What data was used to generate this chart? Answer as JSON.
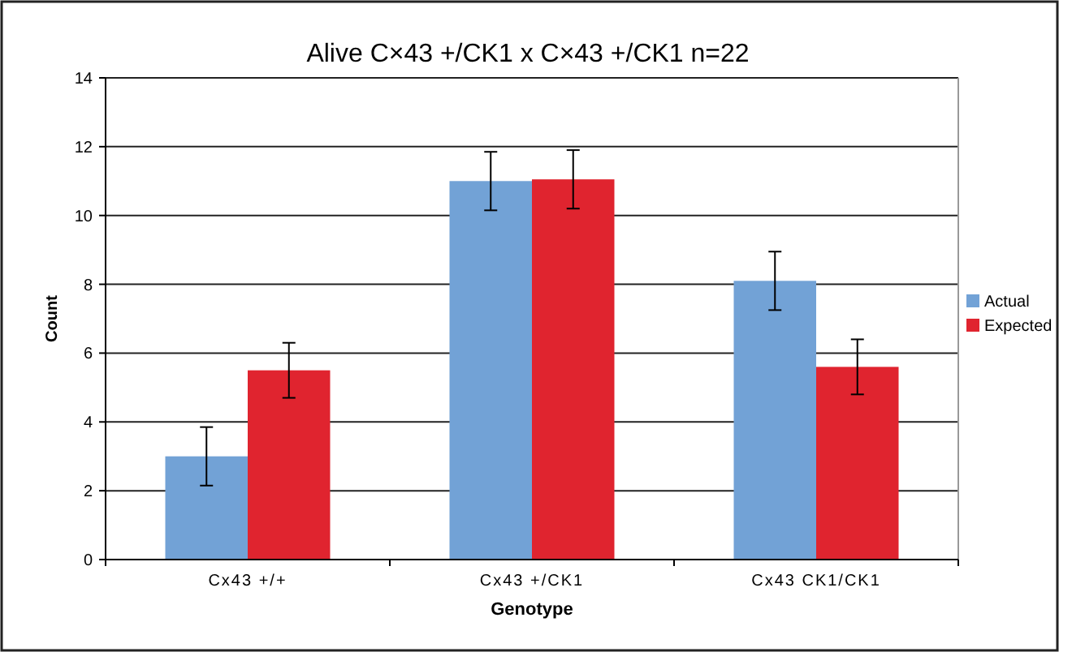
{
  "chart_data": {
    "type": "bar",
    "title": "Alive C×43 +/CK1 x C×43 +/CK1 n=22",
    "xlabel": "Genotype",
    "ylabel": "Count",
    "categories": [
      "Cx43 +/+",
      "Cx43 +/CK1",
      "Cx43 CK1/CK1"
    ],
    "series": [
      {
        "name": "Actual",
        "color": "#72a2d6",
        "values": [
          3,
          11,
          8.1
        ],
        "errors": [
          0.85,
          0.85,
          0.85
        ]
      },
      {
        "name": "Expected",
        "color": "#e0242f",
        "values": [
          5.5,
          11.05,
          5.6
        ],
        "errors": [
          0.8,
          0.85,
          0.8
        ]
      }
    ],
    "ylim": [
      0,
      14
    ],
    "yticks": [
      0,
      2,
      4,
      6,
      8,
      10,
      12,
      14
    ],
    "grid": "y",
    "legend": "right"
  }
}
